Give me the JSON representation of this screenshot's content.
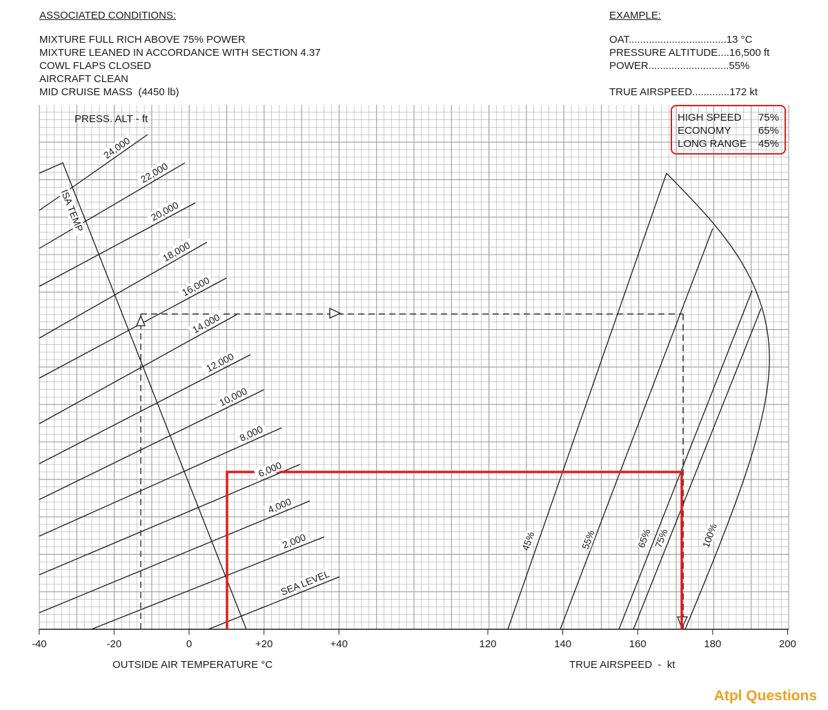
{
  "conditions": {
    "heading": "ASSOCIATED CONDITIONS:",
    "lines": [
      "MIXTURE FULL RICH ABOVE 75% POWER",
      "MIXTURE LEANED IN ACCORDANCE WITH SECTION 4.37",
      "COWL FLAPS CLOSED",
      "AIRCRAFT CLEAN",
      "MID CRUISE MASS  (4450 lb)"
    ]
  },
  "example": {
    "heading": "EXAMPLE:",
    "oat": "OAT..................................13 °C",
    "pressure_altitude": "PRESSURE ALTITUDE....16,500 ft",
    "power": "POWER............................55%",
    "true_airspeed": "TRUE AIRSPEED.............172 kt"
  },
  "power_legend": [
    {
      "label": "HIGH SPEED",
      "value": "75%"
    },
    {
      "label": "ECONOMY",
      "value": "65%"
    },
    {
      "label": "LONG RANGE",
      "value": "45%"
    }
  ],
  "brand": "Atpl Questions",
  "colors": {
    "highlight": "#e01c1c",
    "brand": "#f0a020",
    "grid": "#9a9a9a",
    "ink": "#1a1a1a"
  },
  "chart_data": [
    {
      "type": "line",
      "name": "temperature-altitude",
      "xlabel": "OUTSIDE AIR TEMPERATURE °C",
      "ylabel": "PRESS. ALT - ft",
      "xlim": [
        -40,
        20
      ],
      "x_ticks": [
        "-40",
        "-20",
        "0",
        "+20",
        "+40"
      ],
      "isa_label": "ISA TEMP",
      "altitude_lines": [
        "SEA LEVEL",
        "2,000",
        "4,000",
        "6,000",
        "8,000",
        "10,000",
        "12,000",
        "14,000",
        "16,000",
        "18,000",
        "20,000",
        "22,000",
        "24,000"
      ],
      "example_path": {
        "oat": 13,
        "pressure_altitude": 16500
      }
    },
    {
      "type": "line",
      "name": "power-airspeed",
      "xlabel": "TRUE AIRSPEED  -  kt",
      "xlim": [
        120,
        200
      ],
      "x_ticks": [
        "120",
        "140",
        "160",
        "180",
        "200"
      ],
      "series": [
        {
          "name": "45%",
          "x": [
            125,
            168
          ]
        },
        {
          "name": "55%",
          "x": [
            140,
            180
          ]
        },
        {
          "name": "65%",
          "x": [
            156,
            191
          ]
        },
        {
          "name": "75%",
          "x": [
            159,
            194
          ]
        },
        {
          "name": "100%",
          "x": [
            171,
            195
          ]
        }
      ],
      "example_result": {
        "power": "55%",
        "true_airspeed": 172
      }
    }
  ]
}
